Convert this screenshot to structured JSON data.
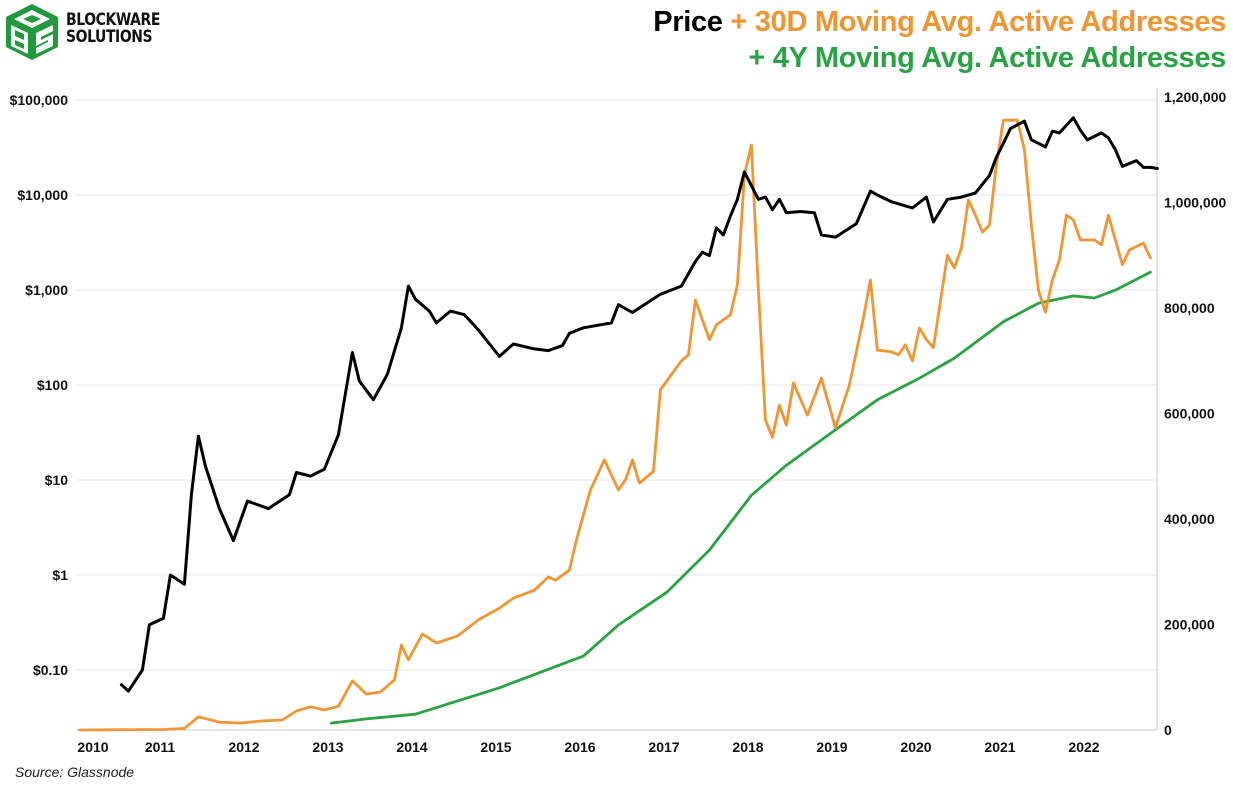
{
  "brand": {
    "line1": "BLOCKWARE",
    "line2": "SOLUTIONS"
  },
  "title": {
    "part_price": "Price",
    "part_30d": " + 30D Moving Avg. Active Addresses",
    "line2": "+ 4Y Moving Avg. Active Addresses"
  },
  "source": "Source: Glassnode",
  "colors": {
    "price": "#000000",
    "ma30": "#f0952f",
    "ma4y": "#27a343",
    "grid": "#e6e6e6"
  },
  "chart_data": {
    "type": "line",
    "title": "Price + 30D Moving Avg. Active Addresses + 4Y Moving Avg. Active Addresses",
    "grid": true,
    "x_ticks": [
      "2010",
      "2011",
      "2012",
      "2013",
      "2014",
      "2015",
      "2016",
      "2017",
      "2018",
      "2019",
      "2020",
      "2021",
      "2022"
    ],
    "y_left": {
      "scale": "log",
      "range": [
        0.024,
        100000
      ],
      "ticks": [
        "$100,000",
        "$10,000",
        "$1,000",
        "$100",
        "$10",
        "$1",
        "$0.10"
      ],
      "tick_values": [
        100000,
        10000,
        1000,
        100,
        10,
        1,
        0.1
      ]
    },
    "y_right": {
      "scale": "linear",
      "range": [
        0,
        1200000
      ],
      "ticks": [
        "1,200,000",
        "1,000,000",
        "800,000",
        "600,000",
        "400,000",
        "200,000",
        "0"
      ],
      "tick_values": [
        1200000,
        1000000,
        800000,
        600000,
        400000,
        200000,
        0
      ]
    },
    "series": [
      {
        "key": "price",
        "axis": "left",
        "points": [
          [
            "2010-07",
            0.07
          ],
          [
            "2010-08",
            0.06
          ],
          [
            "2010-10",
            0.1
          ],
          [
            "2010-11",
            0.3
          ],
          [
            "2011-01",
            0.35
          ],
          [
            "2011-02",
            1.0
          ],
          [
            "2011-04",
            0.8
          ],
          [
            "2011-05",
            7
          ],
          [
            "2011-06",
            29
          ],
          [
            "2011-07",
            14
          ],
          [
            "2011-09",
            5
          ],
          [
            "2011-11",
            2.3
          ],
          [
            "2012-01",
            6
          ],
          [
            "2012-04",
            5
          ],
          [
            "2012-07",
            7
          ],
          [
            "2012-08",
            12
          ],
          [
            "2012-10",
            11
          ],
          [
            "2012-12",
            13
          ],
          [
            "2013-02",
            30
          ],
          [
            "2013-04",
            220
          ],
          [
            "2013-05",
            110
          ],
          [
            "2013-07",
            70
          ],
          [
            "2013-09",
            130
          ],
          [
            "2013-11",
            400
          ],
          [
            "2013-12",
            1100
          ],
          [
            "2014-01",
            800
          ],
          [
            "2014-03",
            600
          ],
          [
            "2014-04",
            450
          ],
          [
            "2014-06",
            600
          ],
          [
            "2014-08",
            550
          ],
          [
            "2014-10",
            380
          ],
          [
            "2015-01",
            200
          ],
          [
            "2015-03",
            270
          ],
          [
            "2015-06",
            240
          ],
          [
            "2015-08",
            230
          ],
          [
            "2015-10",
            260
          ],
          [
            "2015-11",
            350
          ],
          [
            "2016-01",
            400
          ],
          [
            "2016-05",
            450
          ],
          [
            "2016-06",
            700
          ],
          [
            "2016-08",
            580
          ],
          [
            "2016-12",
            900
          ],
          [
            "2017-03",
            1100
          ],
          [
            "2017-05",
            2000
          ],
          [
            "2017-06",
            2500
          ],
          [
            "2017-07",
            2300
          ],
          [
            "2017-08",
            4500
          ],
          [
            "2017-09",
            3800
          ],
          [
            "2017-10",
            6000
          ],
          [
            "2017-11",
            9000
          ],
          [
            "2017-12",
            17500
          ],
          [
            "2018-02",
            9000
          ],
          [
            "2018-03",
            9500
          ],
          [
            "2018-04",
            7000
          ],
          [
            "2018-05",
            9000
          ],
          [
            "2018-06",
            6500
          ],
          [
            "2018-08",
            6700
          ],
          [
            "2018-10",
            6500
          ],
          [
            "2018-11",
            3800
          ],
          [
            "2019-01",
            3600
          ],
          [
            "2019-04",
            5000
          ],
          [
            "2019-06",
            11000
          ],
          [
            "2019-07",
            10000
          ],
          [
            "2019-09",
            8500
          ],
          [
            "2019-12",
            7300
          ],
          [
            "2020-02",
            9500
          ],
          [
            "2020-03",
            5200
          ],
          [
            "2020-05",
            9000
          ],
          [
            "2020-07",
            9500
          ],
          [
            "2020-09",
            10500
          ],
          [
            "2020-11",
            16000
          ],
          [
            "2020-12",
            25000
          ],
          [
            "2021-01",
            35000
          ],
          [
            "2021-02",
            50000
          ],
          [
            "2021-04",
            60000
          ],
          [
            "2021-05",
            38000
          ],
          [
            "2021-06",
            35000
          ],
          [
            "2021-07",
            32000
          ],
          [
            "2021-08",
            47000
          ],
          [
            "2021-09",
            45000
          ],
          [
            "2021-11",
            65000
          ],
          [
            "2021-12",
            48000
          ],
          [
            "2022-01",
            38000
          ],
          [
            "2022-03",
            45000
          ],
          [
            "2022-04",
            40000
          ],
          [
            "2022-05",
            30000
          ],
          [
            "2022-06",
            20000
          ],
          [
            "2022-08",
            23000
          ],
          [
            "2022-09",
            19500
          ],
          [
            "2022-10",
            19500
          ],
          [
            "2022-11",
            19000
          ]
        ]
      },
      {
        "key": "ma30",
        "axis": "right",
        "points": [
          [
            "2010-01",
            0
          ],
          [
            "2011-01",
            1000
          ],
          [
            "2011-04",
            3000
          ],
          [
            "2011-06",
            25000
          ],
          [
            "2011-09",
            15000
          ],
          [
            "2011-12",
            13000
          ],
          [
            "2012-03",
            17000
          ],
          [
            "2012-06",
            19000
          ],
          [
            "2012-08",
            36000
          ],
          [
            "2012-10",
            44000
          ],
          [
            "2012-12",
            38000
          ],
          [
            "2013-02",
            45000
          ],
          [
            "2013-04",
            93000
          ],
          [
            "2013-06",
            68000
          ],
          [
            "2013-08",
            72000
          ],
          [
            "2013-10",
            95000
          ],
          [
            "2013-11",
            161000
          ],
          [
            "2013-12",
            133000
          ],
          [
            "2014-02",
            182000
          ],
          [
            "2014-04",
            165000
          ],
          [
            "2014-07",
            178000
          ],
          [
            "2014-10",
            209000
          ],
          [
            "2015-01",
            231000
          ],
          [
            "2015-03",
            250000
          ],
          [
            "2015-06",
            265000
          ],
          [
            "2015-08",
            290000
          ],
          [
            "2015-09",
            284000
          ],
          [
            "2015-11",
            303000
          ],
          [
            "2015-12",
            360000
          ],
          [
            "2016-02",
            455000
          ],
          [
            "2016-04",
            512000
          ],
          [
            "2016-06",
            455000
          ],
          [
            "2016-07",
            474000
          ],
          [
            "2016-08",
            512000
          ],
          [
            "2016-09",
            468000
          ],
          [
            "2016-11",
            490000
          ],
          [
            "2016-12",
            645000
          ],
          [
            "2017-03",
            700000
          ],
          [
            "2017-04",
            711000
          ],
          [
            "2017-05",
            815000
          ],
          [
            "2017-07",
            740000
          ],
          [
            "2017-08",
            768000
          ],
          [
            "2017-10",
            787000
          ],
          [
            "2017-11",
            844000
          ],
          [
            "2017-12",
            1052000
          ],
          [
            "2018-01",
            1109000
          ],
          [
            "2018-02",
            834000
          ],
          [
            "2018-03",
            588000
          ],
          [
            "2018-04",
            555000
          ],
          [
            "2018-05",
            616000
          ],
          [
            "2018-06",
            578000
          ],
          [
            "2018-07",
            658000
          ],
          [
            "2018-09",
            597000
          ],
          [
            "2018-11",
            667000
          ],
          [
            "2019-01",
            573000
          ],
          [
            "2019-03",
            654000
          ],
          [
            "2019-05",
            781000
          ],
          [
            "2019-06",
            853000
          ],
          [
            "2019-07",
            720000
          ],
          [
            "2019-09",
            717000
          ],
          [
            "2019-10",
            711000
          ],
          [
            "2019-11",
            730000
          ],
          [
            "2019-12",
            700000
          ],
          [
            "2020-01",
            762000
          ],
          [
            "2020-02",
            740000
          ],
          [
            "2020-03",
            725000
          ],
          [
            "2020-05",
            900000
          ],
          [
            "2020-06",
            876000
          ],
          [
            "2020-07",
            914000
          ],
          [
            "2020-08",
            1005000
          ],
          [
            "2020-09",
            976000
          ],
          [
            "2020-10",
            944000
          ],
          [
            "2020-11",
            957000
          ],
          [
            "2020-12",
            1071000
          ],
          [
            "2021-01",
            1156000
          ],
          [
            "2021-03",
            1156000
          ],
          [
            "2021-04",
            1100000
          ],
          [
            "2021-05",
            957000
          ],
          [
            "2021-06",
            834000
          ],
          [
            "2021-07",
            792000
          ],
          [
            "2021-08",
            853000
          ],
          [
            "2021-09",
            891000
          ],
          [
            "2021-10",
            976000
          ],
          [
            "2021-11",
            967000
          ],
          [
            "2021-12",
            929000
          ],
          [
            "2022-02",
            929000
          ],
          [
            "2022-03",
            920000
          ],
          [
            "2022-04",
            976000
          ],
          [
            "2022-06",
            882000
          ],
          [
            "2022-07",
            910000
          ],
          [
            "2022-09",
            923000
          ],
          [
            "2022-10",
            895000
          ]
        ]
      },
      {
        "key": "ma4y",
        "axis": "right",
        "points": [
          [
            "2013-01",
            13000
          ],
          [
            "2013-06",
            21000
          ],
          [
            "2014-01",
            30000
          ],
          [
            "2015-01",
            80000
          ],
          [
            "2016-01",
            140000
          ],
          [
            "2016-06",
            199000
          ],
          [
            "2017-01",
            262000
          ],
          [
            "2017-07",
            341000
          ],
          [
            "2018-01",
            445000
          ],
          [
            "2018-06",
            502000
          ],
          [
            "2019-01",
            569000
          ],
          [
            "2019-07",
            626000
          ],
          [
            "2020-01",
            667000
          ],
          [
            "2020-06",
            705000
          ],
          [
            "2021-01",
            774000
          ],
          [
            "2021-06",
            809000
          ],
          [
            "2021-11",
            823000
          ],
          [
            "2022-02",
            819000
          ],
          [
            "2022-05",
            834000
          ],
          [
            "2022-10",
            868000
          ]
        ]
      }
    ]
  }
}
